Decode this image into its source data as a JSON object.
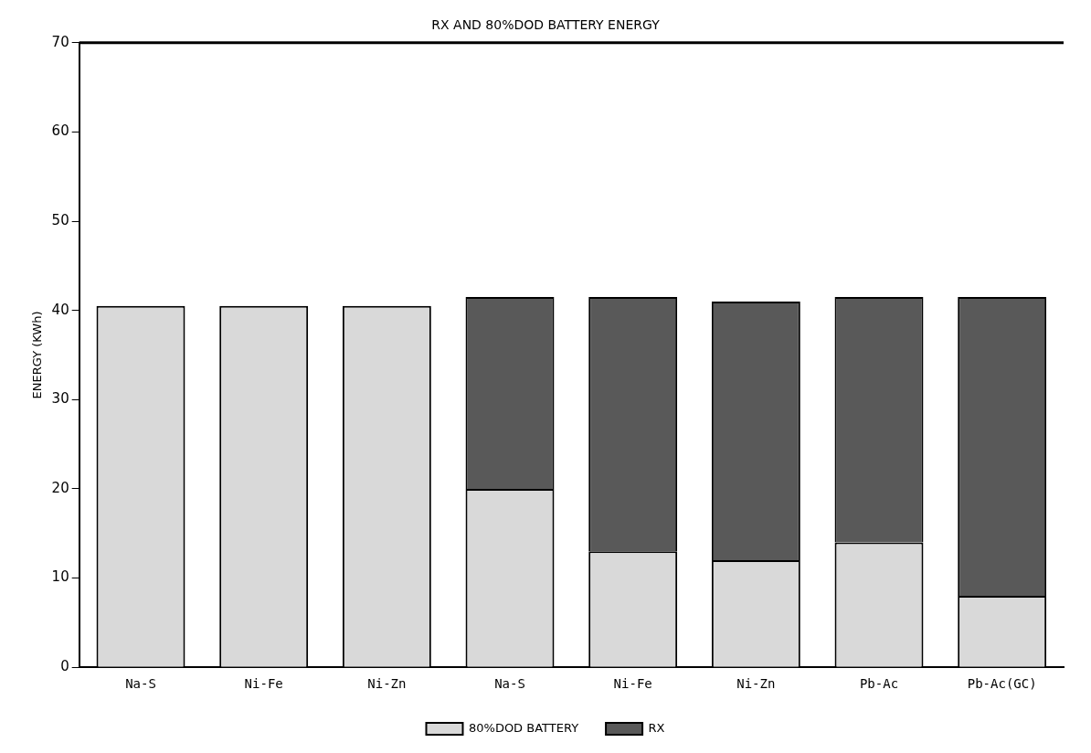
{
  "chart_data": {
    "type": "bar",
    "title": "RX AND 80%DOD BATTERY ENERGY",
    "ylabel": "ENERGY (KWh)",
    "categories": [
      "Na-S",
      "Ni-Fe",
      "Ni-Zn",
      "Na-S",
      "Ni-Fe",
      "Ni-Zn",
      "Pb-Ac",
      "Pb-Ac(GC)"
    ],
    "stacked": true,
    "series": [
      {
        "name": "80%DOD BATTERY",
        "color": "#d9d9d9",
        "values": [
          40.5,
          40.5,
          40.5,
          20,
          13,
          12,
          14,
          8
        ]
      },
      {
        "name": "RX",
        "color": "#595959",
        "values": [
          null,
          null,
          null,
          21.5,
          28.5,
          29,
          27.5,
          33.5
        ]
      }
    ],
    "ylim": [
      0,
      70
    ],
    "yticks": [
      0,
      10,
      20,
      30,
      40,
      50,
      60,
      70
    ],
    "grid": false,
    "legend": "bottom"
  }
}
